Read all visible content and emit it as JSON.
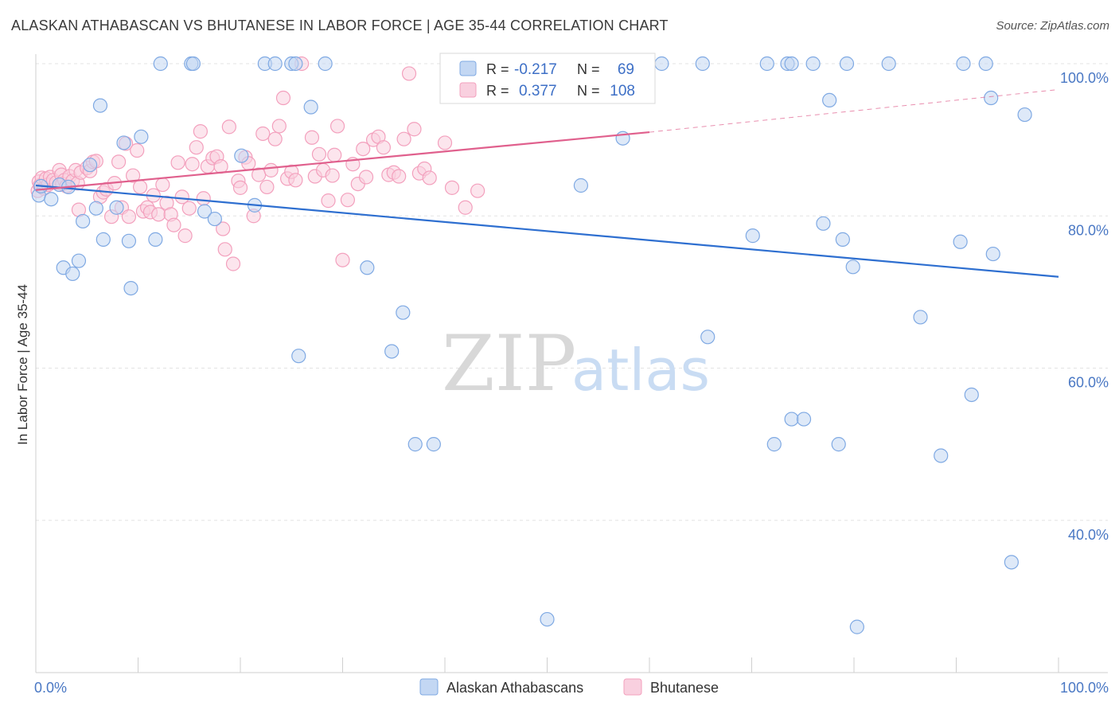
{
  "chart_data": {
    "type": "scatter",
    "title": "ALASKAN ATHABASCAN VS BHUTANESE IN LABOR FORCE | AGE 35-44 CORRELATION CHART",
    "source": "Source: ZipAtlas.com",
    "xlabel": "",
    "ylabel": "In Labor Force | Age 35-44",
    "xlim": [
      0,
      100
    ],
    "ylim": [
      20,
      102
    ],
    "x_tick_labels": [
      "0.0%",
      "100.0%"
    ],
    "y_ticks": [
      40,
      60,
      80,
      100
    ],
    "y_tick_labels": [
      "40.0%",
      "60.0%",
      "80.0%",
      "100.0%"
    ],
    "grid": true,
    "legend_position": "top-center",
    "stats": [
      {
        "r_label": "R =",
        "r_value": "-0.217",
        "n_label": "N =",
        "n_value": "69"
      },
      {
        "r_label": "R =",
        "r_value": "0.377",
        "n_label": "N =",
        "n_value": "108"
      }
    ],
    "series": [
      {
        "name": "Alaskan Athabascans",
        "color": "#7fa9e3",
        "fill": "#c3d7f3",
        "trend_color": "#2e6fd0",
        "trend": {
          "x0": 0,
          "y0": 84.0,
          "x1": 100,
          "y1": 72.0
        },
        "points": [
          [
            0.3,
            82.7
          ],
          [
            0.5,
            83.9
          ],
          [
            1.5,
            82.2
          ],
          [
            2.7,
            73.2
          ],
          [
            2.3,
            84.1
          ],
          [
            3.2,
            83.8
          ],
          [
            3.6,
            72.4
          ],
          [
            4.2,
            74.1
          ],
          [
            4.6,
            79.3
          ],
          [
            5.3,
            86.7
          ],
          [
            5.9,
            81.0
          ],
          [
            6.3,
            94.5
          ],
          [
            6.6,
            76.9
          ],
          [
            7.9,
            81.1
          ],
          [
            8.6,
            89.6
          ],
          [
            9.1,
            76.7
          ],
          [
            9.3,
            70.5
          ],
          [
            10.3,
            90.4
          ],
          [
            11.7,
            76.9
          ],
          [
            12.2,
            100.0
          ],
          [
            15.2,
            100.0
          ],
          [
            15.4,
            100.0
          ],
          [
            16.5,
            80.6
          ],
          [
            17.5,
            79.6
          ],
          [
            20.1,
            87.9
          ],
          [
            21.4,
            81.4
          ],
          [
            22.4,
            100.0
          ],
          [
            23.4,
            100.0
          ],
          [
            25.0,
            100.0
          ],
          [
            25.4,
            100.0
          ],
          [
            25.7,
            61.6
          ],
          [
            26.9,
            94.3
          ],
          [
            28.3,
            100.0
          ],
          [
            32.4,
            73.2
          ],
          [
            34.8,
            62.2
          ],
          [
            35.9,
            67.3
          ],
          [
            37.1,
            50.0
          ],
          [
            38.9,
            50.0
          ],
          [
            50.0,
            27.0
          ],
          [
            53.3,
            84.0
          ],
          [
            57.4,
            90.2
          ],
          [
            61.2,
            100.0
          ],
          [
            65.2,
            100.0
          ],
          [
            65.7,
            64.1
          ],
          [
            70.1,
            77.4
          ],
          [
            71.5,
            100.0
          ],
          [
            72.2,
            50.0
          ],
          [
            73.5,
            100.0
          ],
          [
            73.9,
            53.3
          ],
          [
            73.9,
            100.0
          ],
          [
            75.1,
            53.3
          ],
          [
            76.0,
            100.0
          ],
          [
            77.0,
            79.0
          ],
          [
            77.6,
            95.2
          ],
          [
            78.5,
            50.0
          ],
          [
            78.9,
            76.9
          ],
          [
            79.3,
            100.0
          ],
          [
            79.9,
            73.3
          ],
          [
            80.3,
            26.0
          ],
          [
            83.4,
            100.0
          ],
          [
            86.5,
            66.7
          ],
          [
            90.7,
            100.0
          ],
          [
            88.5,
            48.5
          ],
          [
            90.4,
            76.6
          ],
          [
            91.5,
            56.5
          ],
          [
            92.9,
            100.0
          ],
          [
            93.4,
            95.5
          ],
          [
            93.6,
            75.0
          ],
          [
            95.4,
            34.5
          ],
          [
            96.7,
            93.3
          ]
        ]
      },
      {
        "name": "Bhutanese",
        "color": "#f3a0bd",
        "fill": "#f9d0df",
        "trend_color": "#e0608d",
        "trend": {
          "x0": 0,
          "y0": 83.4,
          "x1": 60,
          "y1": 91.0
        },
        "trend_dashed": {
          "x0": 60,
          "y0": 91.0,
          "x1": 100,
          "y1": 96.6
        },
        "points": [
          [
            0.2,
            83.3
          ],
          [
            0.3,
            84.5
          ],
          [
            0.4,
            84.0
          ],
          [
            0.6,
            85.0
          ],
          [
            0.8,
            83.6
          ],
          [
            1.0,
            84.9
          ],
          [
            1.2,
            84.1
          ],
          [
            1.4,
            85.1
          ],
          [
            1.7,
            84.7
          ],
          [
            2.0,
            84.4
          ],
          [
            2.3,
            86.0
          ],
          [
            2.5,
            85.4
          ],
          [
            2.6,
            84.2
          ],
          [
            2.8,
            84.7
          ],
          [
            3.0,
            83.9
          ],
          [
            3.3,
            85.2
          ],
          [
            3.6,
            84.6
          ],
          [
            3.9,
            86.0
          ],
          [
            4.1,
            84.3
          ],
          [
            4.4,
            85.7
          ],
          [
            4.2,
            80.8
          ],
          [
            5.0,
            86.3
          ],
          [
            5.3,
            85.9
          ],
          [
            5.6,
            87.1
          ],
          [
            5.9,
            87.2
          ],
          [
            6.3,
            82.5
          ],
          [
            6.6,
            83.1
          ],
          [
            6.9,
            83.5
          ],
          [
            7.4,
            79.9
          ],
          [
            7.7,
            84.3
          ],
          [
            8.1,
            87.1
          ],
          [
            8.4,
            81.1
          ],
          [
            8.8,
            89.5
          ],
          [
            9.1,
            79.9
          ],
          [
            9.5,
            85.3
          ],
          [
            9.9,
            88.6
          ],
          [
            10.2,
            83.8
          ],
          [
            10.5,
            80.6
          ],
          [
            10.9,
            81.1
          ],
          [
            11.2,
            80.5
          ],
          [
            11.5,
            82.7
          ],
          [
            12.0,
            80.2
          ],
          [
            12.4,
            84.1
          ],
          [
            12.8,
            81.7
          ],
          [
            13.2,
            80.2
          ],
          [
            13.5,
            78.8
          ],
          [
            13.9,
            87.0
          ],
          [
            14.3,
            82.5
          ],
          [
            14.6,
            77.4
          ],
          [
            15.0,
            81.0
          ],
          [
            15.3,
            86.8
          ],
          [
            15.7,
            89.0
          ],
          [
            16.1,
            91.1
          ],
          [
            16.4,
            82.3
          ],
          [
            16.8,
            86.5
          ],
          [
            17.3,
            87.6
          ],
          [
            17.7,
            87.8
          ],
          [
            18.1,
            86.5
          ],
          [
            18.3,
            78.3
          ],
          [
            18.5,
            75.6
          ],
          [
            18.9,
            91.7
          ],
          [
            19.3,
            73.7
          ],
          [
            19.8,
            84.6
          ],
          [
            20.0,
            83.7
          ],
          [
            20.5,
            87.7
          ],
          [
            20.8,
            86.9
          ],
          [
            21.3,
            80.0
          ],
          [
            21.8,
            85.4
          ],
          [
            22.2,
            90.8
          ],
          [
            22.6,
            83.8
          ],
          [
            23.0,
            86.0
          ],
          [
            23.4,
            90.1
          ],
          [
            23.8,
            91.8
          ],
          [
            24.2,
            95.5
          ],
          [
            24.6,
            84.9
          ],
          [
            25.0,
            85.8
          ],
          [
            25.4,
            84.7
          ],
          [
            26.0,
            100.0
          ],
          [
            27.0,
            90.3
          ],
          [
            27.3,
            85.2
          ],
          [
            27.7,
            88.1
          ],
          [
            28.1,
            86.0
          ],
          [
            28.6,
            82.0
          ],
          [
            29.0,
            85.3
          ],
          [
            29.5,
            91.8
          ],
          [
            30.0,
            74.2
          ],
          [
            30.5,
            82.1
          ],
          [
            31.0,
            86.8
          ],
          [
            31.5,
            84.2
          ],
          [
            32.0,
            88.8
          ],
          [
            32.3,
            85.1
          ],
          [
            33.0,
            90.0
          ],
          [
            33.5,
            90.4
          ],
          [
            34.0,
            89.0
          ],
          [
            34.5,
            85.4
          ],
          [
            35.0,
            85.7
          ],
          [
            35.5,
            85.2
          ],
          [
            36.0,
            90.1
          ],
          [
            36.5,
            98.7
          ],
          [
            37.0,
            91.4
          ],
          [
            37.5,
            85.6
          ],
          [
            38.0,
            86.2
          ],
          [
            38.5,
            85.0
          ],
          [
            40.0,
            89.6
          ],
          [
            40.7,
            83.7
          ],
          [
            43.2,
            83.3
          ],
          [
            42.0,
            81.1
          ],
          [
            29.2,
            88.0
          ]
        ]
      }
    ]
  }
}
